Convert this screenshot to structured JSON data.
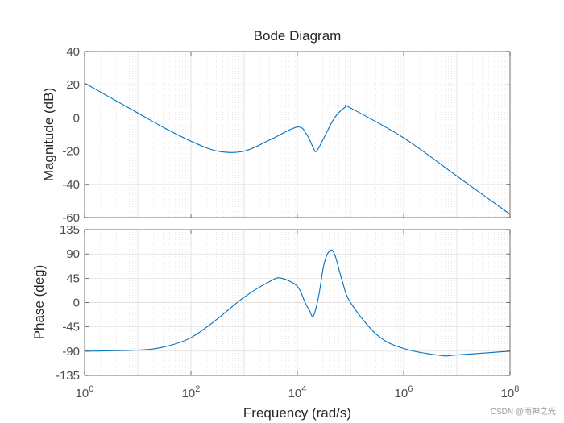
{
  "chart_data": {
    "type": "line",
    "title": "Bode Diagram",
    "xlabel": "Frequency  (rad/s)",
    "xscale": "log",
    "xlim": [
      1,
      100000000
    ],
    "xticks": [
      {
        "value": 1,
        "base": "10",
        "exp": "0"
      },
      {
        "value": 100,
        "base": "10",
        "exp": "2"
      },
      {
        "value": 10000,
        "base": "10",
        "exp": "4"
      },
      {
        "value": 1000000,
        "base": "10",
        "exp": "6"
      },
      {
        "value": 100000000,
        "base": "10",
        "exp": "8"
      }
    ],
    "grid": true,
    "line_color": "#0072BD",
    "panels": [
      {
        "name": "magnitude",
        "ylabel": "Magnitude (dB)",
        "ylim": [
          -60,
          40
        ],
        "yticks": [
          40,
          20,
          0,
          -20,
          -40,
          -60
        ],
        "ytick_labels": [
          "40",
          "20",
          "0",
          "-20",
          "-40",
          "-60"
        ],
        "series": [
          {
            "name": "Magnitude",
            "points": [
              [
                1,
                21
              ],
              [
                3.16,
                12
              ],
              [
                10,
                3
              ],
              [
                31.6,
                -6
              ],
              [
                100,
                -14
              ],
              [
                316,
                -20
              ],
              [
                1000,
                -20
              ],
              [
                3160,
                -13
              ],
              [
                10000,
                -5.5
              ],
              [
                15000,
                -10
              ],
              [
                20000,
                -18
              ],
              [
                23000,
                -20
              ],
              [
                31600,
                -12
              ],
              [
                50000,
                0
              ],
              [
                80000,
                6.5
              ],
              [
                100000,
                6
              ],
              [
                1000000,
                -12
              ],
              [
                10000000,
                -35
              ],
              [
                100000000,
                -58
              ]
            ]
          }
        ]
      },
      {
        "name": "phase",
        "ylabel": "Phase (deg)",
        "ylim": [
          -135,
          135
        ],
        "yticks": [
          135,
          90,
          45,
          0,
          -45,
          -90,
          -135
        ],
        "ytick_labels": [
          "135",
          "90",
          "45",
          "0",
          "-45",
          "-90",
          "-135"
        ],
        "series": [
          {
            "name": "Phase",
            "points": [
              [
                1,
                -90
              ],
              [
                10,
                -88
              ],
              [
                31.6,
                -82
              ],
              [
                100,
                -65
              ],
              [
                316,
                -30
              ],
              [
                1000,
                10
              ],
              [
                3160,
                40
              ],
              [
                5000,
                45
              ],
              [
                10000,
                30
              ],
              [
                14000,
                0
              ],
              [
                17000,
                -15
              ],
              [
                20000,
                -25
              ],
              [
                25000,
                10
              ],
              [
                31600,
                70
              ],
              [
                40000,
                95
              ],
              [
                50000,
                90
              ],
              [
                70000,
                40
              ],
              [
                100000,
                0
              ],
              [
                316000,
                -60
              ],
              [
                1000000,
                -85
              ],
              [
                5000000,
                -98
              ],
              [
                10000000,
                -97
              ],
              [
                100000000,
                -90
              ]
            ]
          }
        ]
      }
    ]
  },
  "watermark": "CSDN @雨神之光"
}
